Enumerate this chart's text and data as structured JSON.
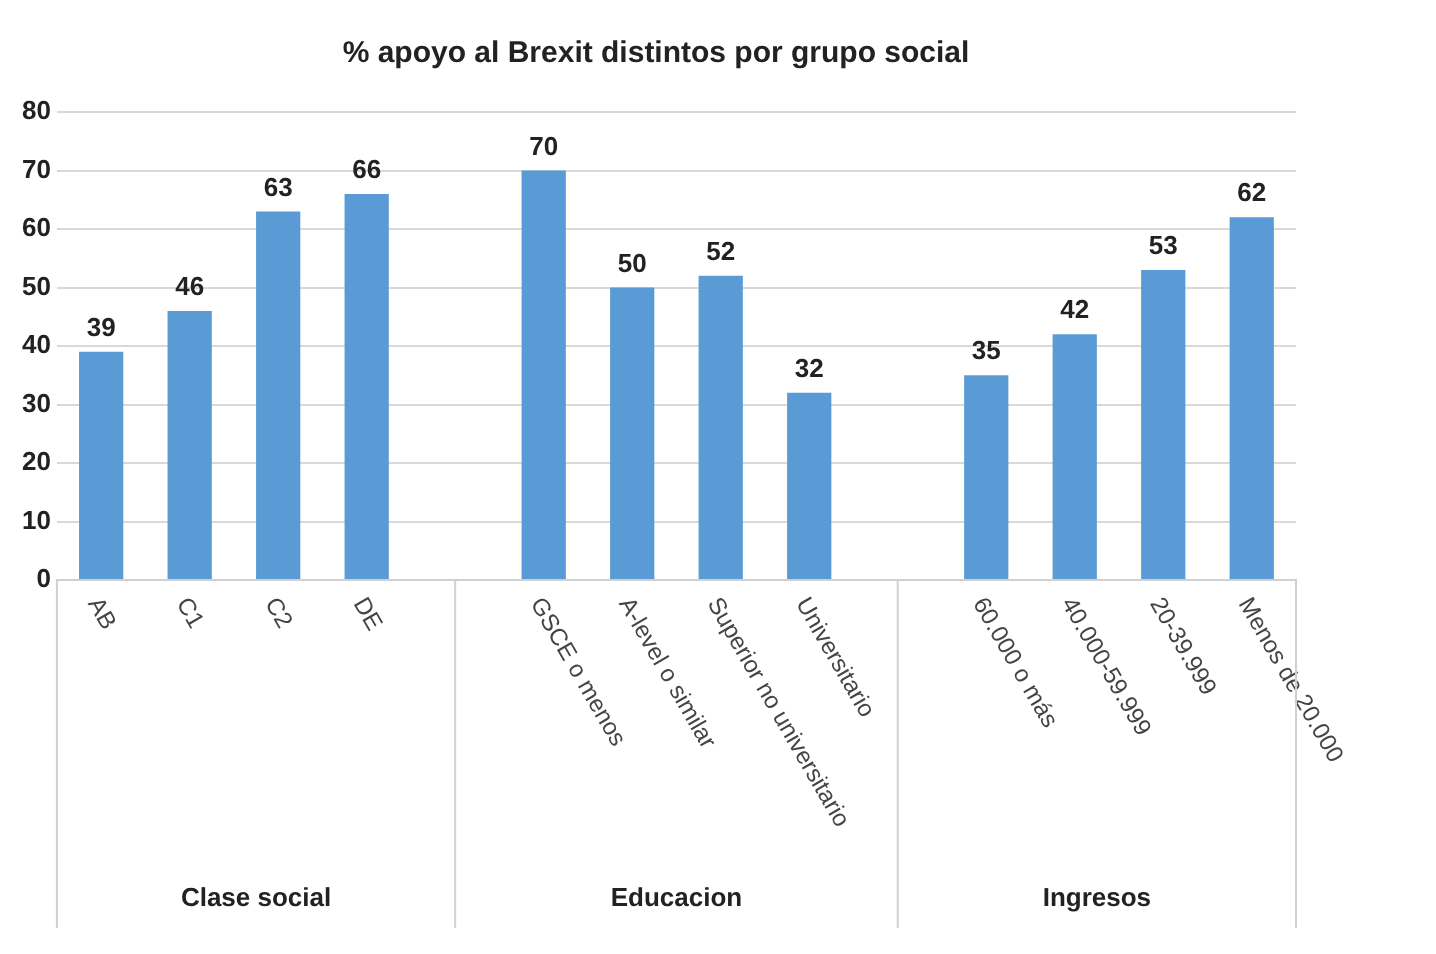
{
  "chart_data": {
    "type": "bar",
    "title": "% apoyo al Brexit distintos por grupo social",
    "categories": [
      "AB",
      "C1",
      "C2",
      "DE",
      null,
      "GSCE o menos",
      "A-level o similar",
      "Superior no universitario",
      "Universitario",
      null,
      "60.000 o más",
      "40.000-59.999",
      "20-39.999",
      "Menos de 20.000"
    ],
    "values": [
      39,
      46,
      63,
      66,
      null,
      70,
      50,
      52,
      32,
      null,
      35,
      42,
      53,
      62
    ],
    "color": "#5b9bd5",
    "ylim": [
      0,
      80
    ],
    "yticks": [
      0,
      10,
      20,
      30,
      40,
      50,
      60,
      70,
      80
    ],
    "grid": "y",
    "legend": false,
    "data_labels": true,
    "annotations": [
      "Clase social",
      "Educacion",
      "Ingresos"
    ]
  }
}
